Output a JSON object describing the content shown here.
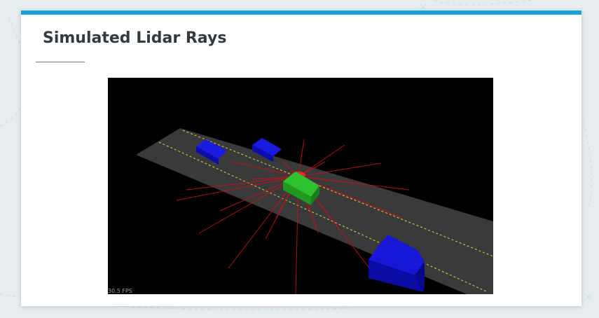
{
  "slide": {
    "title": "Simulated Lidar Rays",
    "accent_color": "#14a3dc"
  },
  "simulation": {
    "fps_text": "30.5 FPS",
    "colors": {
      "background": "#000000",
      "road": "#3a3a3a",
      "lane_line": "#d8d84a",
      "ego_vehicle": "#2ec22e",
      "other_vehicles": "#1010d0",
      "lidar_rays": "#cc1010"
    }
  }
}
